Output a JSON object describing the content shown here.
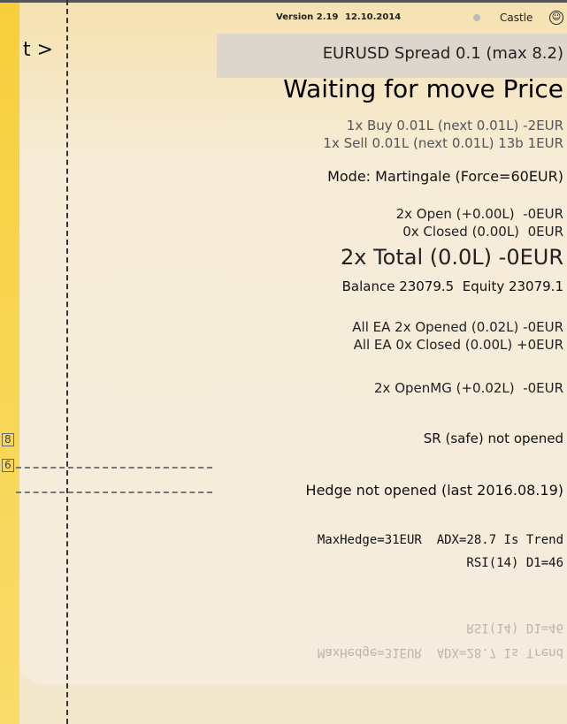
{
  "header": {
    "version": "Version 2.19",
    "date": "12.10.2014",
    "name": "Castle"
  },
  "left_label": "t >",
  "levels": [
    "8",
    "6"
  ],
  "spread": "EURUSD Spread 0.1 (max 8.2)",
  "status": "Waiting for move Price",
  "lines": [
    "1x Buy 0.01L (next 0.01L) -2EUR",
    "1x Sell 0.01L (next 0.01L) 13b 1EUR",
    "Mode: Martingale (Force=60EUR)",
    "2x Open (+0.00L)  -0EUR",
    "0x Closed (0.00L)  0EUR",
    "2x Total (0.0L) -0EUR",
    "Balance 23079.5  Equity 23079.1",
    "All EA 2x Opened (0.02L) -0EUR",
    "All EA 0x Closed (0.00L) +0EUR",
    "2x OpenMG (+0.02L)  -0EUR",
    "SR (safe) not opened",
    "Hedge not opened (last 2016.08.19)"
  ],
  "indicators": [
    "MaxHedge=31EUR  ADX=28.7 Is Trend",
    "RSI(14) D1=46"
  ]
}
